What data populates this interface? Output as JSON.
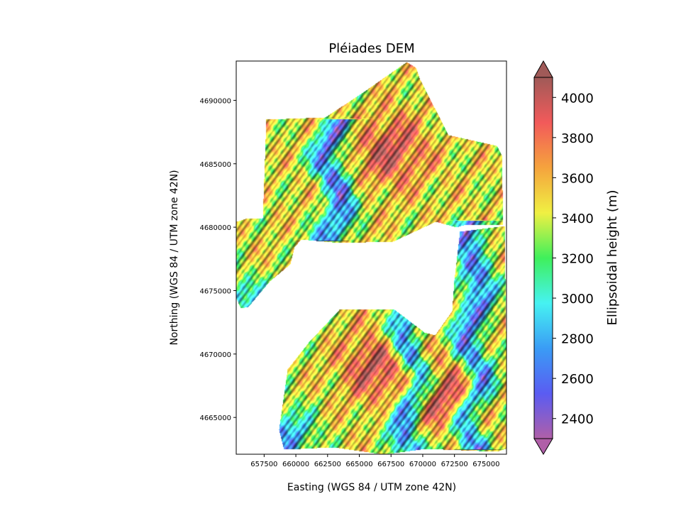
{
  "chart_data": {
    "type": "heatmap",
    "title": "Pléiades DEM",
    "xlabel": "Easting (WGS 84 / UTM zone 42N)",
    "ylabel": "Northing (WGS 84 / UTM zone 42N)",
    "xlim": [
      655300,
      676600
    ],
    "ylim": [
      4662100,
      4693100
    ],
    "x_ticks": [
      657500,
      660000,
      662500,
      665000,
      667500,
      670000,
      672500,
      675000
    ],
    "x_tick_labels": [
      "657500",
      "660000",
      "662500",
      "665000",
      "667500",
      "670000",
      "672500",
      "675000"
    ],
    "y_ticks": [
      4665000,
      4670000,
      4675000,
      4680000,
      4685000,
      4690000
    ],
    "y_tick_labels": [
      "4665000",
      "4670000",
      "4675000",
      "4680000",
      "4685000",
      "4690000"
    ],
    "colorbar": {
      "label": "Ellipsoidal height (m)",
      "range": [
        2300,
        4100
      ],
      "extend": "both",
      "ticks": [
        2400,
        2600,
        2800,
        3000,
        3200,
        3400,
        3600,
        3800,
        4000
      ],
      "tick_labels": [
        "2400",
        "2600",
        "2800",
        "3000",
        "3200",
        "3400",
        "3600",
        "3800",
        "4000"
      ],
      "colormap": [
        "#b05fa8",
        "#5a5cf2",
        "#3a9cf5",
        "#46f2f2",
        "#3ff05b",
        "#f0f043",
        "#f5a33d",
        "#f25a5a",
        "#a05a58"
      ]
    },
    "grid": false,
    "valleys": [
      {
        "x": 663000,
        "y_top": 4688000,
        "y_bottom": 4679500
      },
      {
        "x": 669000,
        "y_top": 4676000,
        "y_bottom": 4662500
      },
      {
        "x": 674000,
        "y_top": 4680000,
        "y_bottom": 4663000
      }
    ],
    "peaks": [
      {
        "x": 667500,
        "y": 4686000
      },
      {
        "x": 666500,
        "y": 4669000
      },
      {
        "x": 672000,
        "y": 4666500
      }
    ]
  }
}
